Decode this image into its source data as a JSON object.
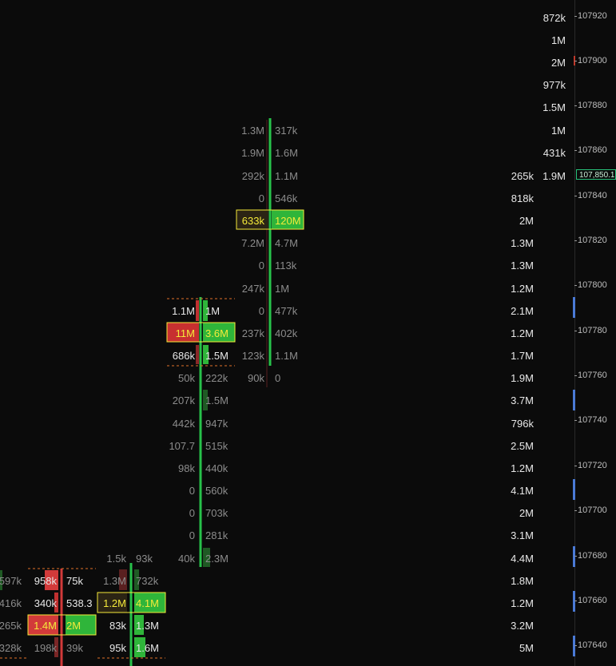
{
  "price_axis": {
    "labels": [
      "107920",
      "107900",
      "107880",
      "107860",
      "107840",
      "107820",
      "107800",
      "107780",
      "107760",
      "107740",
      "107720",
      "107700",
      "107680",
      "107660",
      "107640"
    ],
    "current_price": "107,850.1",
    "accent_color": "#27c07a"
  },
  "profile_volumes": {
    "col_a": [
      "265k",
      "818k",
      "2M",
      "1.3M",
      "1.3M",
      "1.2M",
      "2.1M",
      "1.2M",
      "1.7M",
      "1.9M",
      "3.7M",
      "796k",
      "2.5M",
      "1.2M",
      "4.1M",
      "2M",
      "3.1M",
      "4.4M",
      "1.8M",
      "1.2M",
      "3.2M",
      "5M"
    ],
    "col_b": [
      "872k",
      "1M",
      "2M",
      "977k",
      "1.5M",
      "1M",
      "431k",
      "1.9M"
    ]
  },
  "footprints": {
    "candle_4": {
      "bid": [
        "1.3M",
        "1.9M",
        "292k",
        "0",
        "633k",
        "7.2M",
        "0",
        "247k",
        "0",
        "237k",
        "123k",
        "90k"
      ],
      "ask": [
        "317k",
        "1.6M",
        "1.1M",
        "546k",
        "120M",
        "4.7M",
        "113k",
        "1M",
        "477k",
        "402k",
        "1.1M",
        "0"
      ]
    },
    "candle_3": {
      "bid": [
        "1.1M",
        "11M",
        "686k",
        "50k",
        "207k",
        "442k",
        "107.7",
        "98k",
        "0",
        "0",
        "0",
        "40k"
      ],
      "ask": [
        "1M",
        "3.6M",
        "1.5M",
        "222k",
        "1.5M",
        "947k",
        "515k",
        "440k",
        "560k",
        "703k",
        "281k",
        "2.3M"
      ]
    },
    "candle_2": {
      "bid": [
        "1.5k",
        "1.3M",
        "1.2M",
        "83k",
        "95k"
      ],
      "ask": [
        "93k",
        "732k",
        "4.1M",
        "1.3M",
        "1.6M"
      ]
    },
    "candle_1": {
      "bid": [
        "958k",
        "340k",
        "1.4M",
        "198k"
      ],
      "ask": [
        "75k",
        "538.3",
        "2M",
        "39k"
      ]
    },
    "candle_0": {
      "bid": [
        "597k",
        "416k",
        "265k",
        "328k"
      ]
    }
  },
  "colors": {
    "bid": "#d23a3a",
    "ask": "#27c24a",
    "poc": "#f4ea3a",
    "dashed": "#e0702a"
  }
}
